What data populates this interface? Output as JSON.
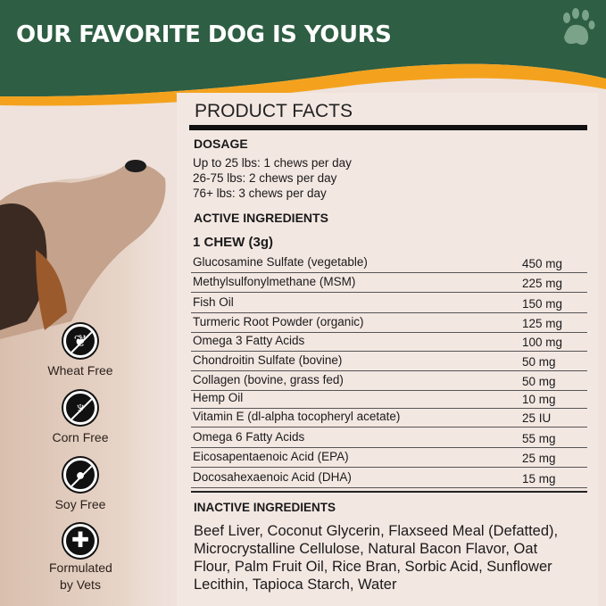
{
  "header": {
    "title": "OUR FAVORITE DOG IS YOURS",
    "icon": "paw-icon",
    "colors": {
      "green": "#2e5e43",
      "orange": "#f4a21e"
    }
  },
  "facts": {
    "title": "PRODUCT FACTS",
    "dosage_heading": "DOSAGE",
    "dosage": [
      "Up to 25 lbs: 1 chews per day",
      "26-75 lbs: 2 chews per day",
      "76+ lbs: 3 chews per day"
    ],
    "active_heading": "ACTIVE INGREDIENTS",
    "serving": "1 CHEW (3g)",
    "ingredients": [
      {
        "name": "Glucosamine Sulfate (vegetable)",
        "amount": "450 mg"
      },
      {
        "name": "Methylsulfonylmethane (MSM)",
        "amount": "225 mg"
      },
      {
        "name": "Fish Oil",
        "amount": "150 mg"
      },
      {
        "name": "Turmeric Root Powder (organic)",
        "amount": "125 mg"
      },
      {
        "name": "Omega 3 Fatty Acids",
        "amount": "100 mg"
      },
      {
        "name": "Chondroitin Sulfate (bovine)",
        "amount": "50 mg"
      },
      {
        "name": "Collagen (bovine, grass fed)",
        "amount": "50 mg"
      },
      {
        "name": "Hemp Oil",
        "amount": "10 mg"
      },
      {
        "name": "Vitamin E (dl-alpha tocopheryl acetate)",
        "amount": "25 IU"
      },
      {
        "name": "Omega 6 Fatty Acids",
        "amount": "55 mg"
      },
      {
        "name": "Eicosapentaenoic Acid (EPA)",
        "amount": "25 mg"
      },
      {
        "name": "Docosahexaenoic Acid (DHA)",
        "amount": "15 mg"
      }
    ],
    "inactive_heading": "INACTIVE INGREDIENTS",
    "inactive": "Beef Liver, Coconut Glycerin, Flaxseed Meal (Defatted), Microcrystalline Cellulose, Natural Bacon Flavor, Oat Flour, Palm Fruit Oil, Rice Bran, Sorbic Acid, Sunflower Lecithin, Tapioca Starch, Water"
  },
  "badges": [
    {
      "label": "Wheat Free",
      "icon": "wheat-free-icon"
    },
    {
      "label": "Corn Free",
      "icon": "corn-free-icon"
    },
    {
      "label": "Soy Free",
      "icon": "soy-free-icon"
    },
    {
      "label": "Formulated by Vets",
      "icon": "vet-cross-icon"
    }
  ]
}
